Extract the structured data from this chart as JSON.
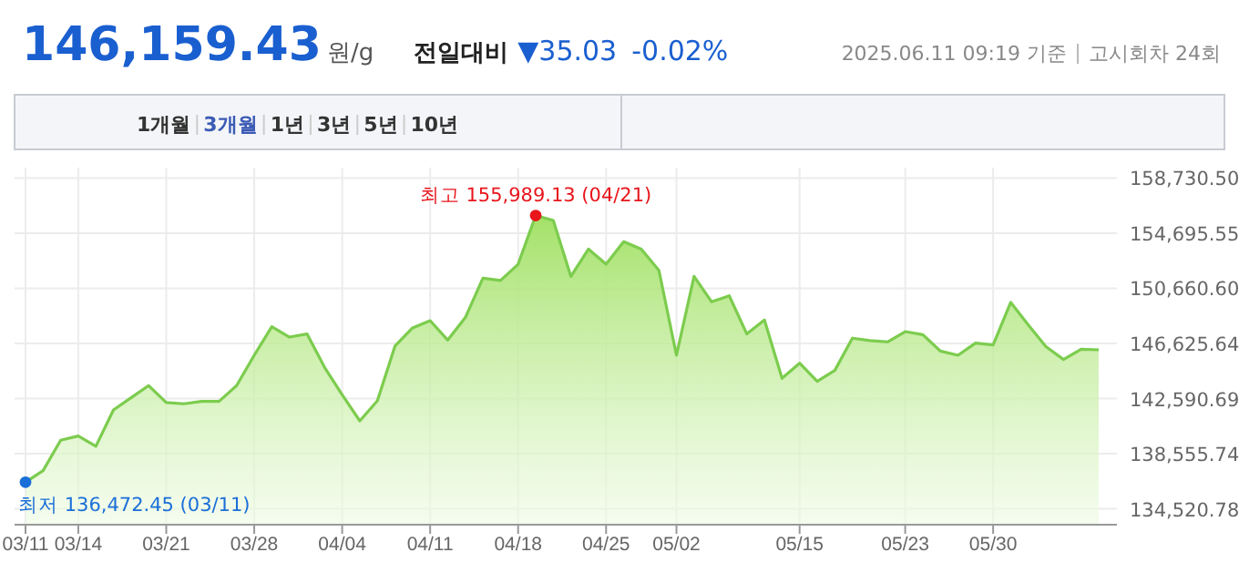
{
  "chart_data": {
    "type": "area",
    "title": "146,159.43",
    "categories": [
      "03/11",
      null,
      null,
      "03/14",
      null,
      null,
      null,
      null,
      "03/21",
      null,
      null,
      null,
      null,
      "03/28",
      null,
      null,
      null,
      null,
      "04/04",
      null,
      null,
      null,
      null,
      "04/11",
      null,
      null,
      null,
      null,
      "04/18",
      null,
      null,
      null,
      null,
      "04/25",
      null,
      null,
      null,
      "05/02",
      null,
      null,
      null,
      null,
      null,
      null,
      "05/15",
      null,
      null,
      null,
      null,
      null,
      "05/23",
      null,
      null,
      null,
      null,
      "05/30",
      null,
      null,
      null,
      null,
      null,
      null
    ],
    "series": [
      {
        "color": "#7ccc4e",
        "values": [
          136472.45,
          137320,
          139540,
          139850,
          139100,
          141760,
          142650,
          143540,
          142300,
          142210,
          142380,
          142380,
          143540,
          145760,
          147850,
          147090,
          147320,
          144870,
          142870,
          140960,
          142430,
          146430,
          147760,
          148290,
          146870,
          148520,
          151400,
          151230,
          152420,
          155989.13,
          155620,
          151530,
          153530,
          152420,
          154070,
          153530,
          151980,
          145760,
          151530,
          149670,
          150110,
          147320,
          148340,
          144070,
          145180,
          143850,
          144650,
          147010,
          146830,
          146740,
          147490,
          147270,
          146070,
          145760,
          146650,
          146520,
          149630,
          147980,
          146390,
          145450,
          146200,
          146159.43
        ]
      },
      {
        "type": "scatter",
        "color": "#e8151b",
        "values": [
          null,
          null,
          null,
          null,
          null,
          null,
          null,
          null,
          null,
          null,
          null,
          null,
          null,
          null,
          null,
          null,
          null,
          null,
          null,
          null,
          null,
          null,
          null,
          null,
          null,
          null,
          null,
          null,
          null,
          155989.13,
          null,
          null,
          null,
          null,
          null,
          null,
          null,
          null,
          null,
          null,
          null,
          null,
          null,
          null,
          null,
          null,
          null,
          null,
          null,
          null,
          null,
          null,
          null,
          null,
          null,
          null,
          null,
          null,
          null,
          null,
          null,
          null
        ]
      },
      {
        "type": "scatter",
        "color": "#1a6fd8",
        "values": [
          136472.45,
          null,
          null,
          null,
          null,
          null,
          null,
          null,
          null,
          null,
          null,
          null,
          null,
          null,
          null,
          null,
          null,
          null,
          null,
          null,
          null,
          null,
          null,
          null,
          null,
          null,
          null,
          null,
          null,
          null,
          null,
          null,
          null,
          null,
          null,
          null,
          null,
          null,
          null,
          null,
          null,
          null,
          null,
          null,
          null,
          null,
          null,
          null,
          null,
          null,
          null,
          null,
          null,
          null,
          null,
          null,
          null,
          null,
          null,
          null,
          null,
          null
        ]
      }
    ],
    "ylim": [
      133360,
      158730.5
    ],
    "yticks": [
      {
        "value": 134520.78,
        "label": "134,520.78"
      },
      {
        "value": 138555.74,
        "label": "138,555.74"
      },
      {
        "value": 142590.69,
        "label": "142,590.69"
      },
      {
        "value": 146625.64,
        "label": "146,625.64"
      },
      {
        "value": 150660.6,
        "label": "150,660.60"
      },
      {
        "value": 154695.55,
        "label": "154,695.55"
      },
      {
        "value": 158730.5,
        "label": "158,730.50"
      }
    ],
    "grid": true,
    "annotations": [
      "원/g",
      "전일대비",
      "▼35.03",
      "-0.02%",
      "2025.06.11 09:19 기준",
      "고시회차 24회",
      "1개월",
      "3개월",
      "1년",
      "3년",
      "5년",
      "10년",
      "최고 155,989.13 (04/21)",
      "최저 136,472.45 (03/11)"
    ]
  }
}
